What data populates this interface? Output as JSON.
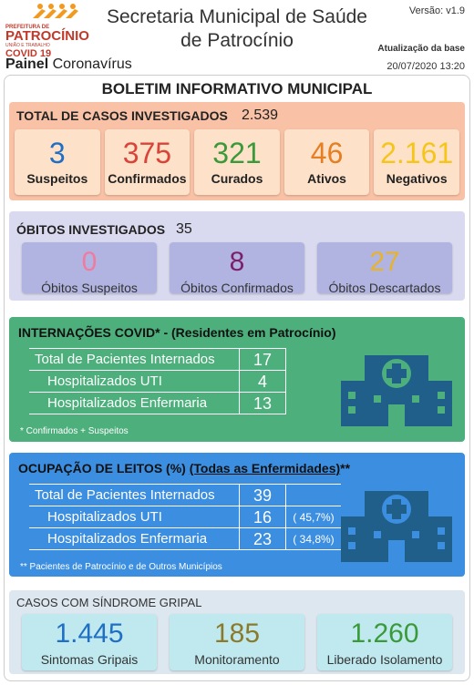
{
  "header": {
    "logo": {
      "line1": "PREFEITURA DE",
      "line2": "PATROCÍNIO",
      "line3": "UNIÃO E TRABALHO",
      "tag": "COVID 19"
    },
    "title_line1": "Secretaria Municipal de Saúde",
    "title_line2": "de Patrocínio",
    "version": "Versão: v1.9",
    "update_label": "Atualização da base",
    "update_date": "20/07/2020 13:20",
    "panel_bold": "Painel",
    "panel_rest": "Coronavírus"
  },
  "bulletin_title": "BOLETIM INFORMATIVO MUNICIPAL",
  "cases": {
    "title": "TOTAL DE CASOS INVESTIGADOS",
    "total": "2.539",
    "cards": [
      {
        "value": "3",
        "label": "Suspeitos"
      },
      {
        "value": "375",
        "label": "Confirmados"
      },
      {
        "value": "321",
        "label": "Curados"
      },
      {
        "value": "46",
        "label": "Ativos"
      },
      {
        "value": "2.161",
        "label": "Negativos"
      }
    ]
  },
  "deaths": {
    "title": "ÓBITOS INVESTIGADOS",
    "total": "35",
    "cards": [
      {
        "value": "0",
        "label": "Óbitos Suspeitos"
      },
      {
        "value": "8",
        "label": "Óbitos Confirmados"
      },
      {
        "value": "27",
        "label": "Óbitos Descartados"
      }
    ]
  },
  "hospitalizations": {
    "title": "INTERNAÇÕES COVID* - (Residentes em Patrocínio)",
    "rows": [
      {
        "label": "Total de Pacientes Internados",
        "value": "17"
      },
      {
        "label": "Hospitalizados UTI",
        "value": "4"
      },
      {
        "label": "Hospitalizados Enfermaria",
        "value": "13"
      }
    ],
    "note": "* Confirmados + Suspeitos"
  },
  "beds": {
    "title_main": "OCUPAÇÃO DE LEITOS (%)",
    "title_link": "(Todas as Enfermidades)",
    "title_suffix": "**",
    "rows": [
      {
        "label": "Total de Pacientes Internados",
        "value": "39"
      },
      {
        "label": "Hospitalizados UTI",
        "value": "16",
        "percent": "( 45,7%)"
      },
      {
        "label": "Hospitalizados Enfermaria",
        "value": "23",
        "percent": "( 34,8%)"
      }
    ],
    "note": "** Pacientes de Patrocínio e de Outros Municípios"
  },
  "flu": {
    "title": "CASOS COM SÍNDROME GRIPAL",
    "cards": [
      {
        "value": "1.445",
        "label": "Sintomas Gripais"
      },
      {
        "value": "185",
        "label": "Monitoramento"
      },
      {
        "value": "1.260",
        "label": "Liberado Isolamento"
      }
    ]
  }
}
